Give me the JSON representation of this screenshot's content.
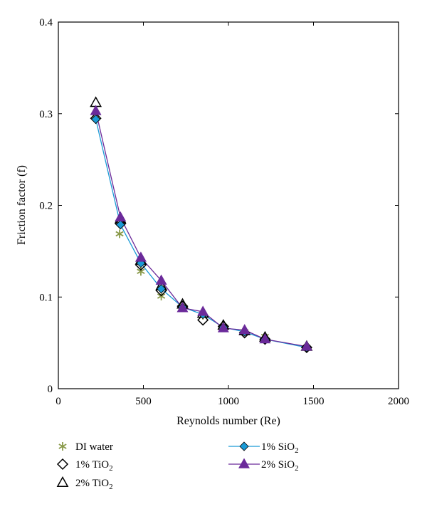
{
  "chart_data": {
    "type": "scatter",
    "xlabel": "Reynolds number (Re)",
    "ylabel": "Friction factor (f)",
    "xlim": [
      0,
      2000
    ],
    "ylim": [
      0,
      0.4
    ],
    "x_ticks": [
      0,
      500,
      1000,
      1500,
      2000
    ],
    "y_ticks": [
      0,
      0.1,
      0.2,
      0.3,
      0.4
    ],
    "x_tick_labels": [
      "0",
      "500",
      "1000",
      "1500",
      "2000"
    ],
    "y_tick_labels": [
      "0",
      "0.1",
      "0.2",
      "0.3",
      "0.4"
    ],
    "grid": false,
    "legend_position": "bottom",
    "series": [
      {
        "name": "DI water",
        "marker": "asterisk",
        "line": false,
        "color": "#8a9a4a",
        "x": [
          220,
          360,
          485,
          605,
          730,
          850,
          970,
          1095,
          1215,
          1460
        ],
        "y": [
          0.295,
          0.169,
          0.128,
          0.101,
          0.09,
          0.08,
          0.068,
          0.062,
          0.057,
          0.045
        ]
      },
      {
        "name": "1% TiO2",
        "marker": "diamond-open",
        "line": false,
        "color": "#000000",
        "x": [
          220,
          365,
          485,
          605,
          730,
          850,
          970,
          1095,
          1215,
          1460
        ],
        "y": [
          0.295,
          0.18,
          0.135,
          0.107,
          0.09,
          0.075,
          0.068,
          0.061,
          0.054,
          0.045
        ]
      },
      {
        "name": "2% TiO2",
        "marker": "triangle-open",
        "line": false,
        "color": "#000000",
        "x": [
          220,
          365,
          485,
          605,
          730,
          850,
          970,
          1095,
          1215,
          1460
        ],
        "y": [
          0.312,
          0.185,
          0.14,
          0.112,
          0.092,
          0.082,
          0.069,
          0.063,
          0.056,
          0.046
        ]
      },
      {
        "name": "1% SiO2",
        "marker": "diamond-filled",
        "line": true,
        "color": "#1a9ad6",
        "x": [
          220,
          365,
          485,
          605,
          730,
          850,
          970,
          1095,
          1215,
          1460
        ],
        "y": [
          0.294,
          0.179,
          0.137,
          0.109,
          0.089,
          0.081,
          0.067,
          0.062,
          0.054,
          0.045
        ]
      },
      {
        "name": "2% SiO2",
        "marker": "triangle-filled",
        "line": true,
        "color": "#6b2a9a",
        "x": [
          220,
          365,
          485,
          605,
          730,
          850,
          970,
          1095,
          1215,
          1460
        ],
        "y": [
          0.303,
          0.187,
          0.143,
          0.118,
          0.088,
          0.084,
          0.066,
          0.064,
          0.054,
          0.046
        ]
      }
    ]
  },
  "legend": {
    "items": [
      {
        "label": "DI water",
        "base": "DI water",
        "sub": ""
      },
      {
        "label": "1% TiO2",
        "base": "1% TiO",
        "sub": "2"
      },
      {
        "label": "2% TiO2",
        "base": "2% TiO",
        "sub": "2"
      },
      {
        "label": "1% SiO2",
        "base": "1% SiO",
        "sub": "2"
      },
      {
        "label": "2% SiO2",
        "base": "2% SiO",
        "sub": "2"
      }
    ]
  }
}
